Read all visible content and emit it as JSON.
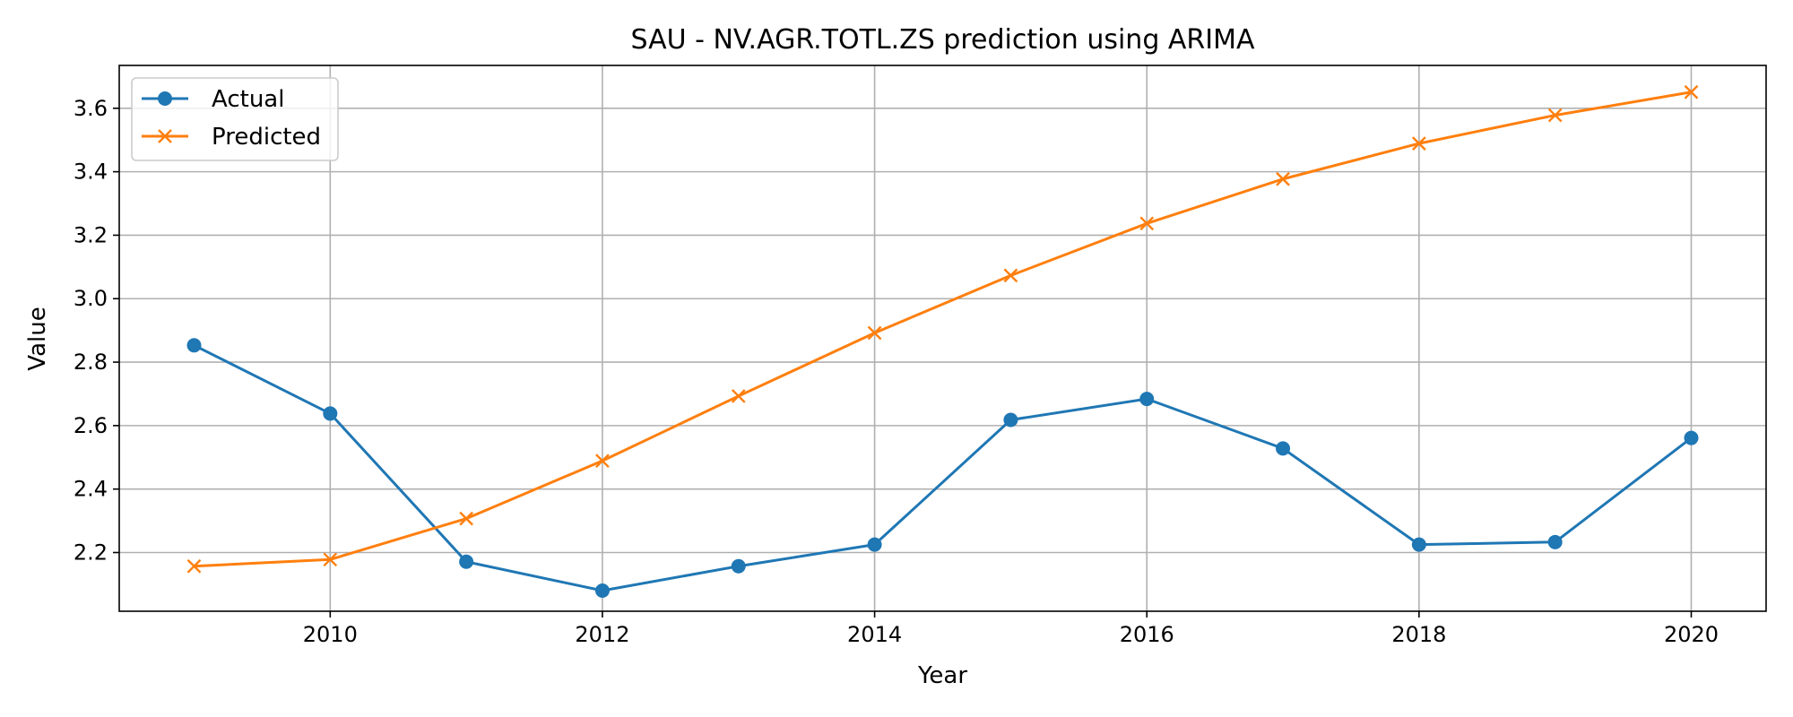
{
  "chart_data": {
    "type": "line",
    "title": "SAU - NV.AGR.TOTL.ZS prediction using ARIMA",
    "xlabel": "Year",
    "ylabel": "Value",
    "xlim": [
      2008.45,
      2020.55
    ],
    "ylim": [
      2.015,
      3.735
    ],
    "x": [
      2009,
      2010,
      2011,
      2012,
      2013,
      2014,
      2015,
      2016,
      2017,
      2018,
      2019,
      2020
    ],
    "xticks": [
      2010,
      2012,
      2014,
      2016,
      2018,
      2020
    ],
    "yticks": [
      2.2,
      2.4,
      2.6,
      2.8,
      3.0,
      3.2,
      3.4,
      3.6
    ],
    "ytick_labels": [
      "2.2",
      "2.4",
      "2.6",
      "2.8",
      "3.0",
      "3.2",
      "3.4",
      "3.6"
    ],
    "grid": true,
    "legend_position": "top-left",
    "series": [
      {
        "name": "Actual",
        "color": "#1f77b4",
        "marker": "circle",
        "values": [
          2.853,
          2.638,
          2.171,
          2.08,
          2.157,
          2.225,
          2.618,
          2.684,
          2.528,
          2.225,
          2.233,
          2.561
        ]
      },
      {
        "name": "Predicted",
        "color": "#ff7f0e",
        "marker": "x",
        "values": [
          2.157,
          2.178,
          2.307,
          2.489,
          2.693,
          2.892,
          3.073,
          3.237,
          3.377,
          3.489,
          3.578,
          3.651
        ]
      }
    ]
  }
}
